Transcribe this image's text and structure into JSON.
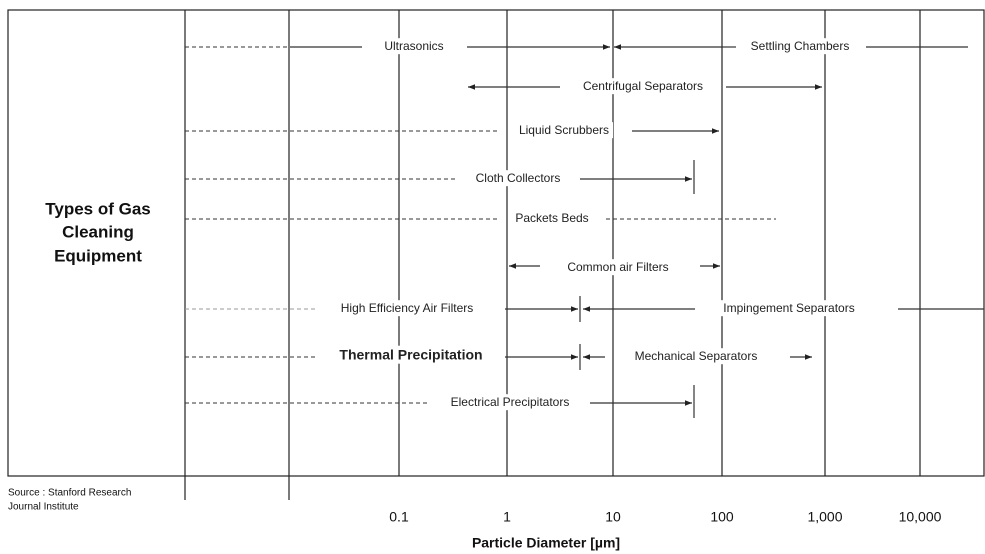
{
  "header": {
    "title_lines": [
      "Types of Gas",
      "Cleaning",
      "Equipment"
    ]
  },
  "source": [
    "Source : Stanford Research",
    "Journal Institute"
  ],
  "x_axis": {
    "title": "Particle Diameter [µm]",
    "ticks": [
      "0.1",
      "1",
      "10",
      "100",
      "1,000",
      "10,000"
    ]
  },
  "equipment": [
    "Ultrasonics",
    "Settling Chambers",
    "Centrifugal Separators",
    "Liquid Scrubbers",
    "Cloth Collectors",
    "Packets Beds",
    "Common air Filters",
    "High Efficiency Air Filters",
    "Impingement Separators",
    "Thermal Precipitation",
    "Mechanical Separators",
    "Electrical Precipitators"
  ]
}
